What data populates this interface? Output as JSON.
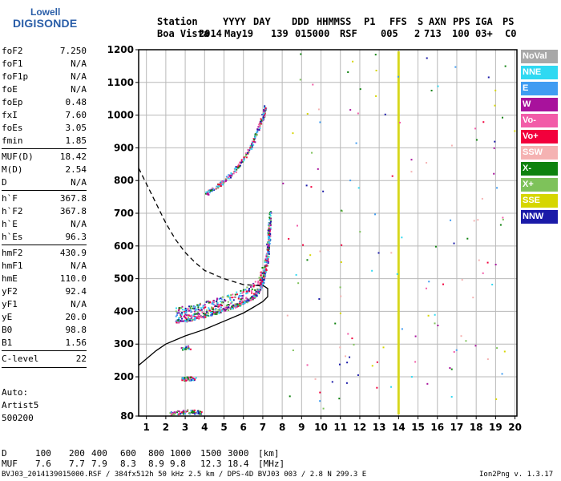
{
  "logo": {
    "line1": "Lowell",
    "line2": "DIGISONDE"
  },
  "header": {
    "row1": [
      "Station",
      "YYYY",
      "DAY",
      "DDD",
      "HHMMSS",
      "P1",
      "FFS",
      "S",
      "AXN",
      "PPS",
      "IGA",
      "PS"
    ],
    "row2": [
      "Boa Vista",
      "2014",
      "May19",
      "139",
      "015000",
      "RSF",
      "005",
      "2",
      "713",
      "100",
      "03+",
      "C0"
    ]
  },
  "params": {
    "group1": [
      {
        "name": "foF2",
        "value": "7.250"
      },
      {
        "name": "foF1",
        "value": "N/A"
      },
      {
        "name": "foF1p",
        "value": "N/A"
      },
      {
        "name": "foE",
        "value": "N/A"
      },
      {
        "name": "foEp",
        "value": "0.48"
      },
      {
        "name": "fxI",
        "value": "7.60"
      },
      {
        "name": "foEs",
        "value": "3.05"
      },
      {
        "name": "fmin",
        "value": "1.85"
      }
    ],
    "group2": [
      {
        "name": "MUF(D)",
        "value": "18.42"
      },
      {
        "name": "M(D)",
        "value": "2.54"
      },
      {
        "name": "D",
        "value": "N/A"
      }
    ],
    "group3": [
      {
        "name": "h`F",
        "value": "367.8"
      },
      {
        "name": "h`F2",
        "value": "367.8"
      },
      {
        "name": "h`E",
        "value": "N/A"
      },
      {
        "name": "h`Es",
        "value": "96.3"
      }
    ],
    "group4": [
      {
        "name": "hmF2",
        "value": "430.9"
      },
      {
        "name": "hmF1",
        "value": "N/A"
      },
      {
        "name": "hmE",
        "value": "110.0"
      },
      {
        "name": "yF2",
        "value": "92.4"
      },
      {
        "name": "yF1",
        "value": "N/A"
      },
      {
        "name": "yE",
        "value": "20.0"
      },
      {
        "name": "B0",
        "value": "98.8"
      },
      {
        "name": "B1",
        "value": "1.56"
      }
    ],
    "group5": [
      {
        "name": "C-level",
        "value": "22"
      }
    ]
  },
  "auto": {
    "line1": "Auto:",
    "line2": "Artist5",
    "line3": "500200"
  },
  "legend": [
    {
      "label": "NoVal",
      "color": "#a8a8a8"
    },
    {
      "label": "NNE",
      "color": "#2fd9f2"
    },
    {
      "label": "E",
      "color": "#3f9cf2"
    },
    {
      "label": "W",
      "color": "#a8129c"
    },
    {
      "label": "Vo-",
      "color": "#f25ca8"
    },
    {
      "label": "Vo+",
      "color": "#f2003c"
    },
    {
      "label": "SSW",
      "color": "#f5b2b2"
    },
    {
      "label": "X-",
      "color": "#0e820e"
    },
    {
      "label": "X+",
      "color": "#7ec25a"
    },
    {
      "label": "SSE",
      "color": "#d6d600"
    },
    {
      "label": "NNW",
      "color": "#1a1aa8"
    }
  ],
  "footer": {
    "row1": [
      "D",
      "100",
      "200",
      "400",
      "600",
      "800",
      "1000",
      "1500",
      "3000",
      "[km]"
    ],
    "row2": [
      "MUF",
      "7.6",
      "7.7",
      "7.9",
      "8.3",
      "8.9",
      "9.8",
      "12.3",
      "18.4",
      "[MHz]"
    ],
    "line": "BVJ03_2014139015000.RSF / 384fx512h 50 kHz 2.5 km / DPS-4D BVJ03 003 / 2.8 N 299.3 E",
    "version": "Ion2Png v. 1.3.17"
  },
  "chart_data": {
    "type": "scatter",
    "xlim": [
      0.6,
      20.1
    ],
    "ylim": [
      80,
      1200
    ],
    "xticks": [
      1,
      2,
      3,
      4,
      5,
      6,
      7,
      8,
      9,
      10,
      11,
      12,
      13,
      14,
      15,
      16,
      17,
      18,
      19,
      20
    ],
    "yticks": [
      80,
      200,
      300,
      400,
      500,
      600,
      700,
      800,
      900,
      1000,
      1100,
      1200
    ],
    "grid": true,
    "legend_position": "right",
    "traces": [
      {
        "region": "F2 trace",
        "points": [
          [
            2.5,
            375
          ],
          [
            3.0,
            378
          ],
          [
            3.5,
            385
          ],
          [
            4.0,
            392
          ],
          [
            4.5,
            400
          ],
          [
            5.0,
            410
          ],
          [
            5.5,
            420
          ],
          [
            6.0,
            432
          ],
          [
            6.5,
            450
          ],
          [
            6.8,
            470
          ],
          [
            7.0,
            500
          ],
          [
            7.2,
            560
          ],
          [
            7.3,
            630
          ],
          [
            7.35,
            680
          ]
        ]
      },
      {
        "region": "F2 second hop",
        "points": [
          [
            4.0,
            760
          ],
          [
            4.5,
            780
          ],
          [
            5.0,
            800
          ],
          [
            5.5,
            830
          ],
          [
            6.0,
            870
          ],
          [
            6.5,
            920
          ],
          [
            6.8,
            970
          ],
          [
            7.0,
            1000
          ],
          [
            7.1,
            1030
          ]
        ]
      },
      {
        "region": "Es trace",
        "points": [
          [
            2.8,
            195
          ],
          [
            3.0,
            195
          ],
          [
            3.2,
            197
          ],
          [
            3.5,
            196
          ]
        ]
      },
      {
        "region": "Es second hop",
        "points": [
          [
            2.8,
            290
          ],
          [
            3.2,
            290
          ]
        ]
      },
      {
        "region": "low trace",
        "points": [
          [
            2.2,
            90
          ],
          [
            2.6,
            92
          ],
          [
            3.0,
            95
          ],
          [
            3.4,
            95
          ],
          [
            3.8,
            92
          ]
        ]
      }
    ],
    "true_height_profile": [
      [
        0.6,
        235
      ],
      [
        1.0,
        255
      ],
      [
        1.5,
        280
      ],
      [
        2.0,
        300
      ],
      [
        3.0,
        325
      ],
      [
        4.0,
        345
      ],
      [
        5.0,
        370
      ],
      [
        6.0,
        395
      ],
      [
        6.5,
        412
      ],
      [
        7.0,
        430
      ],
      [
        7.25,
        445
      ],
      [
        7.25,
        470
      ],
      [
        7.0,
        480
      ]
    ],
    "extrapolated_profile": [
      [
        0.6,
        838
      ],
      [
        1.0,
        790
      ],
      [
        1.5,
        730
      ],
      [
        2.0,
        670
      ],
      [
        2.5,
        620
      ],
      [
        3.0,
        580
      ],
      [
        3.5,
        550
      ],
      [
        4.0,
        525
      ],
      [
        5.0,
        500
      ],
      [
        6.0,
        482
      ],
      [
        7.0,
        478
      ]
    ],
    "vertical_line_x": 14.0
  }
}
